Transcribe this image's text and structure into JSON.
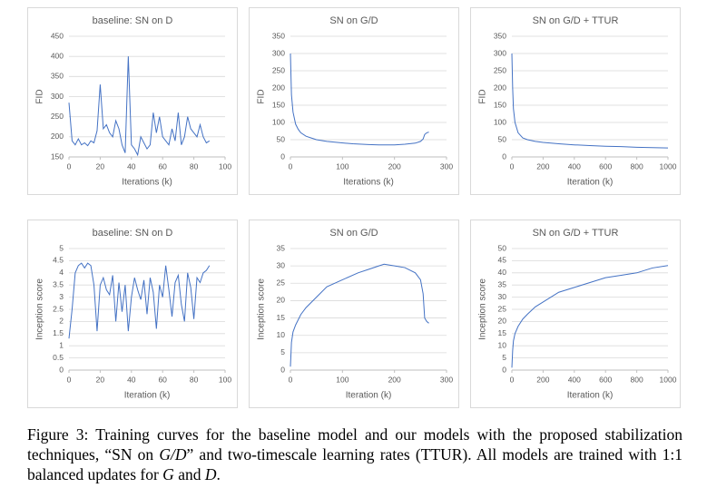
{
  "chart_data": [
    {
      "type": "line",
      "title": "baseline: SN on D",
      "x_label": "Iterations (k)",
      "y_label": "FID",
      "color": "#4472c4",
      "grid": true,
      "xlim": [
        0,
        100
      ],
      "xticks": [
        0,
        20,
        40,
        60,
        80,
        100
      ],
      "ylim": [
        150,
        450
      ],
      "yticks": [
        150,
        200,
        250,
        300,
        350,
        400,
        450
      ],
      "x": [
        0,
        2,
        4,
        6,
        8,
        10,
        12,
        14,
        16,
        18,
        20,
        22,
        24,
        26,
        28,
        30,
        32,
        34,
        36,
        38,
        40,
        42,
        44,
        46,
        48,
        50,
        52,
        54,
        56,
        58,
        60,
        62,
        64,
        66,
        68,
        70,
        72,
        74,
        76,
        78,
        80,
        82,
        84,
        86,
        88,
        90
      ],
      "values": [
        285,
        190,
        180,
        195,
        180,
        185,
        178,
        190,
        185,
        215,
        330,
        220,
        230,
        210,
        200,
        240,
        220,
        180,
        160,
        400,
        180,
        170,
        155,
        200,
        185,
        170,
        180,
        260,
        210,
        250,
        200,
        190,
        180,
        220,
        190,
        260,
        180,
        200,
        250,
        220,
        210,
        200,
        230,
        200,
        185,
        190
      ]
    },
    {
      "type": "line",
      "title": "SN on G/D",
      "x_label": "Iterations (k)",
      "y_label": "FID",
      "color": "#4472c4",
      "grid": true,
      "xlim": [
        0,
        300
      ],
      "xticks": [
        0,
        100,
        200,
        300
      ],
      "ylim": [
        0,
        350
      ],
      "yticks": [
        0,
        50,
        100,
        150,
        200,
        250,
        300,
        350
      ],
      "x": [
        0,
        2,
        5,
        10,
        15,
        20,
        30,
        40,
        50,
        70,
        90,
        120,
        150,
        170,
        200,
        220,
        240,
        250,
        255,
        258,
        262,
        266
      ],
      "values": [
        300,
        180,
        130,
        95,
        80,
        70,
        60,
        55,
        50,
        45,
        42,
        38,
        36,
        35,
        35,
        37,
        40,
        45,
        52,
        65,
        70,
        72
      ]
    },
    {
      "type": "line",
      "title": "SN on G/D + TTUR",
      "x_label": "Iteration (k)",
      "y_label": "FID",
      "color": "#4472c4",
      "grid": true,
      "xlim": [
        0,
        1000
      ],
      "xticks": [
        0,
        200,
        400,
        600,
        800,
        1000
      ],
      "ylim": [
        0,
        350
      ],
      "yticks": [
        0,
        50,
        100,
        150,
        200,
        250,
        300,
        350
      ],
      "x": [
        0,
        5,
        10,
        20,
        40,
        70,
        100,
        150,
        200,
        300,
        400,
        500,
        600,
        700,
        800,
        900,
        1000
      ],
      "values": [
        300,
        200,
        140,
        100,
        70,
        55,
        50,
        45,
        42,
        38,
        35,
        33,
        31,
        30,
        28,
        27,
        26
      ]
    },
    {
      "type": "line",
      "title": "baseline: SN on D",
      "x_label": "Iteration (k)",
      "y_label": "Inception score",
      "color": "#4472c4",
      "grid": true,
      "xlim": [
        0,
        100
      ],
      "xticks": [
        0,
        20,
        40,
        60,
        80,
        100
      ],
      "ylim": [
        0,
        5
      ],
      "yticks": [
        0,
        0.5,
        1,
        1.5,
        2,
        2.5,
        3,
        3.5,
        4,
        4.5,
        5
      ],
      "x": [
        0,
        2,
        4,
        6,
        8,
        10,
        12,
        14,
        16,
        18,
        20,
        22,
        24,
        26,
        28,
        30,
        32,
        34,
        36,
        38,
        40,
        42,
        44,
        46,
        48,
        50,
        52,
        54,
        56,
        58,
        60,
        62,
        64,
        66,
        68,
        70,
        72,
        74,
        76,
        78,
        80,
        82,
        84,
        86,
        88,
        90
      ],
      "values": [
        1.3,
        2.5,
        4.0,
        4.3,
        4.4,
        4.2,
        4.4,
        4.3,
        3.5,
        1.6,
        3.5,
        3.8,
        3.3,
        3.1,
        3.9,
        2.0,
        3.6,
        2.4,
        3.5,
        1.6,
        3.0,
        3.8,
        3.3,
        2.9,
        3.7,
        2.3,
        3.8,
        3.2,
        1.7,
        3.5,
        3.0,
        4.3,
        3.3,
        2.2,
        3.6,
        3.9,
        2.7,
        2.0,
        4.0,
        3.4,
        2.1,
        3.8,
        3.6,
        4.0,
        4.1,
        4.3
      ]
    },
    {
      "type": "line",
      "title": "SN on G/D",
      "x_label": "Iteration (k)",
      "y_label": "Inception score",
      "color": "#4472c4",
      "grid": true,
      "xlim": [
        0,
        300
      ],
      "xticks": [
        0,
        100,
        200,
        300
      ],
      "ylim": [
        0,
        35
      ],
      "yticks": [
        0,
        5,
        10,
        15,
        20,
        25,
        30,
        35
      ],
      "x": [
        0,
        2,
        5,
        10,
        20,
        30,
        50,
        70,
        100,
        130,
        150,
        170,
        180,
        200,
        220,
        240,
        250,
        255,
        258,
        262,
        266
      ],
      "values": [
        1,
        8,
        11,
        13,
        16,
        18,
        21,
        24,
        26,
        28,
        29,
        30,
        30.5,
        30,
        29.5,
        28,
        26,
        22,
        15,
        14,
        13.5
      ]
    },
    {
      "type": "line",
      "title": "SN on G/D + TTUR",
      "x_label": "Iteration (k)",
      "y_label": "Inception score",
      "color": "#4472c4",
      "grid": true,
      "xlim": [
        0,
        1000
      ],
      "xticks": [
        0,
        200,
        400,
        600,
        800,
        1000
      ],
      "ylim": [
        0,
        50
      ],
      "yticks": [
        0,
        5,
        10,
        15,
        20,
        25,
        30,
        35,
        40,
        45,
        50
      ],
      "x": [
        0,
        5,
        10,
        20,
        40,
        70,
        100,
        150,
        200,
        300,
        400,
        500,
        600,
        700,
        800,
        900,
        1000
      ],
      "values": [
        1,
        8,
        12,
        15,
        18,
        21,
        23,
        26,
        28,
        32,
        34,
        36,
        38,
        39,
        40,
        42,
        43
      ]
    }
  ],
  "caption": [
    "Figure 3: Training curves for the baseline model and our models with the proposed stabilization techniques, “SN on ",
    "G/D",
    "” and two-timescale learning rates (TTUR). All models are trained with 1:1 balanced updates for ",
    "G",
    " and ",
    "D",
    "."
  ]
}
